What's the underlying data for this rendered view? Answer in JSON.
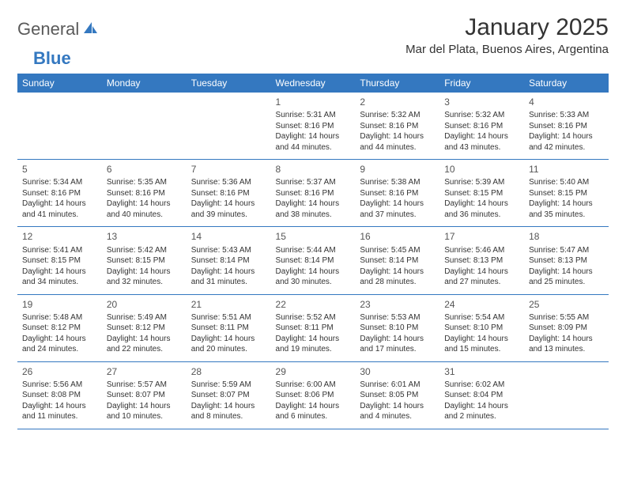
{
  "logo": {
    "text_general": "General",
    "text_blue": "Blue"
  },
  "title": "January 2025",
  "location": "Mar del Plata, Buenos Aires, Argentina",
  "colors": {
    "header_bg": "#3478c0",
    "header_text": "#ffffff",
    "border": "#3478c0",
    "body_text": "#333333",
    "logo_gray": "#5a5a5a",
    "logo_blue": "#3478c0",
    "page_bg": "#ffffff"
  },
  "day_headers": [
    "Sunday",
    "Monday",
    "Tuesday",
    "Wednesday",
    "Thursday",
    "Friday",
    "Saturday"
  ],
  "weeks": [
    [
      {
        "day": "",
        "sunrise": "",
        "sunset": "",
        "daylight": ""
      },
      {
        "day": "",
        "sunrise": "",
        "sunset": "",
        "daylight": ""
      },
      {
        "day": "",
        "sunrise": "",
        "sunset": "",
        "daylight": ""
      },
      {
        "day": "1",
        "sunrise": "Sunrise: 5:31 AM",
        "sunset": "Sunset: 8:16 PM",
        "daylight": "Daylight: 14 hours and 44 minutes."
      },
      {
        "day": "2",
        "sunrise": "Sunrise: 5:32 AM",
        "sunset": "Sunset: 8:16 PM",
        "daylight": "Daylight: 14 hours and 44 minutes."
      },
      {
        "day": "3",
        "sunrise": "Sunrise: 5:32 AM",
        "sunset": "Sunset: 8:16 PM",
        "daylight": "Daylight: 14 hours and 43 minutes."
      },
      {
        "day": "4",
        "sunrise": "Sunrise: 5:33 AM",
        "sunset": "Sunset: 8:16 PM",
        "daylight": "Daylight: 14 hours and 42 minutes."
      }
    ],
    [
      {
        "day": "5",
        "sunrise": "Sunrise: 5:34 AM",
        "sunset": "Sunset: 8:16 PM",
        "daylight": "Daylight: 14 hours and 41 minutes."
      },
      {
        "day": "6",
        "sunrise": "Sunrise: 5:35 AM",
        "sunset": "Sunset: 8:16 PM",
        "daylight": "Daylight: 14 hours and 40 minutes."
      },
      {
        "day": "7",
        "sunrise": "Sunrise: 5:36 AM",
        "sunset": "Sunset: 8:16 PM",
        "daylight": "Daylight: 14 hours and 39 minutes."
      },
      {
        "day": "8",
        "sunrise": "Sunrise: 5:37 AM",
        "sunset": "Sunset: 8:16 PM",
        "daylight": "Daylight: 14 hours and 38 minutes."
      },
      {
        "day": "9",
        "sunrise": "Sunrise: 5:38 AM",
        "sunset": "Sunset: 8:16 PM",
        "daylight": "Daylight: 14 hours and 37 minutes."
      },
      {
        "day": "10",
        "sunrise": "Sunrise: 5:39 AM",
        "sunset": "Sunset: 8:15 PM",
        "daylight": "Daylight: 14 hours and 36 minutes."
      },
      {
        "day": "11",
        "sunrise": "Sunrise: 5:40 AM",
        "sunset": "Sunset: 8:15 PM",
        "daylight": "Daylight: 14 hours and 35 minutes."
      }
    ],
    [
      {
        "day": "12",
        "sunrise": "Sunrise: 5:41 AM",
        "sunset": "Sunset: 8:15 PM",
        "daylight": "Daylight: 14 hours and 34 minutes."
      },
      {
        "day": "13",
        "sunrise": "Sunrise: 5:42 AM",
        "sunset": "Sunset: 8:15 PM",
        "daylight": "Daylight: 14 hours and 32 minutes."
      },
      {
        "day": "14",
        "sunrise": "Sunrise: 5:43 AM",
        "sunset": "Sunset: 8:14 PM",
        "daylight": "Daylight: 14 hours and 31 minutes."
      },
      {
        "day": "15",
        "sunrise": "Sunrise: 5:44 AM",
        "sunset": "Sunset: 8:14 PM",
        "daylight": "Daylight: 14 hours and 30 minutes."
      },
      {
        "day": "16",
        "sunrise": "Sunrise: 5:45 AM",
        "sunset": "Sunset: 8:14 PM",
        "daylight": "Daylight: 14 hours and 28 minutes."
      },
      {
        "day": "17",
        "sunrise": "Sunrise: 5:46 AM",
        "sunset": "Sunset: 8:13 PM",
        "daylight": "Daylight: 14 hours and 27 minutes."
      },
      {
        "day": "18",
        "sunrise": "Sunrise: 5:47 AM",
        "sunset": "Sunset: 8:13 PM",
        "daylight": "Daylight: 14 hours and 25 minutes."
      }
    ],
    [
      {
        "day": "19",
        "sunrise": "Sunrise: 5:48 AM",
        "sunset": "Sunset: 8:12 PM",
        "daylight": "Daylight: 14 hours and 24 minutes."
      },
      {
        "day": "20",
        "sunrise": "Sunrise: 5:49 AM",
        "sunset": "Sunset: 8:12 PM",
        "daylight": "Daylight: 14 hours and 22 minutes."
      },
      {
        "day": "21",
        "sunrise": "Sunrise: 5:51 AM",
        "sunset": "Sunset: 8:11 PM",
        "daylight": "Daylight: 14 hours and 20 minutes."
      },
      {
        "day": "22",
        "sunrise": "Sunrise: 5:52 AM",
        "sunset": "Sunset: 8:11 PM",
        "daylight": "Daylight: 14 hours and 19 minutes."
      },
      {
        "day": "23",
        "sunrise": "Sunrise: 5:53 AM",
        "sunset": "Sunset: 8:10 PM",
        "daylight": "Daylight: 14 hours and 17 minutes."
      },
      {
        "day": "24",
        "sunrise": "Sunrise: 5:54 AM",
        "sunset": "Sunset: 8:10 PM",
        "daylight": "Daylight: 14 hours and 15 minutes."
      },
      {
        "day": "25",
        "sunrise": "Sunrise: 5:55 AM",
        "sunset": "Sunset: 8:09 PM",
        "daylight": "Daylight: 14 hours and 13 minutes."
      }
    ],
    [
      {
        "day": "26",
        "sunrise": "Sunrise: 5:56 AM",
        "sunset": "Sunset: 8:08 PM",
        "daylight": "Daylight: 14 hours and 11 minutes."
      },
      {
        "day": "27",
        "sunrise": "Sunrise: 5:57 AM",
        "sunset": "Sunset: 8:07 PM",
        "daylight": "Daylight: 14 hours and 10 minutes."
      },
      {
        "day": "28",
        "sunrise": "Sunrise: 5:59 AM",
        "sunset": "Sunset: 8:07 PM",
        "daylight": "Daylight: 14 hours and 8 minutes."
      },
      {
        "day": "29",
        "sunrise": "Sunrise: 6:00 AM",
        "sunset": "Sunset: 8:06 PM",
        "daylight": "Daylight: 14 hours and 6 minutes."
      },
      {
        "day": "30",
        "sunrise": "Sunrise: 6:01 AM",
        "sunset": "Sunset: 8:05 PM",
        "daylight": "Daylight: 14 hours and 4 minutes."
      },
      {
        "day": "31",
        "sunrise": "Sunrise: 6:02 AM",
        "sunset": "Sunset: 8:04 PM",
        "daylight": "Daylight: 14 hours and 2 minutes."
      },
      {
        "day": "",
        "sunrise": "",
        "sunset": "",
        "daylight": ""
      }
    ]
  ]
}
